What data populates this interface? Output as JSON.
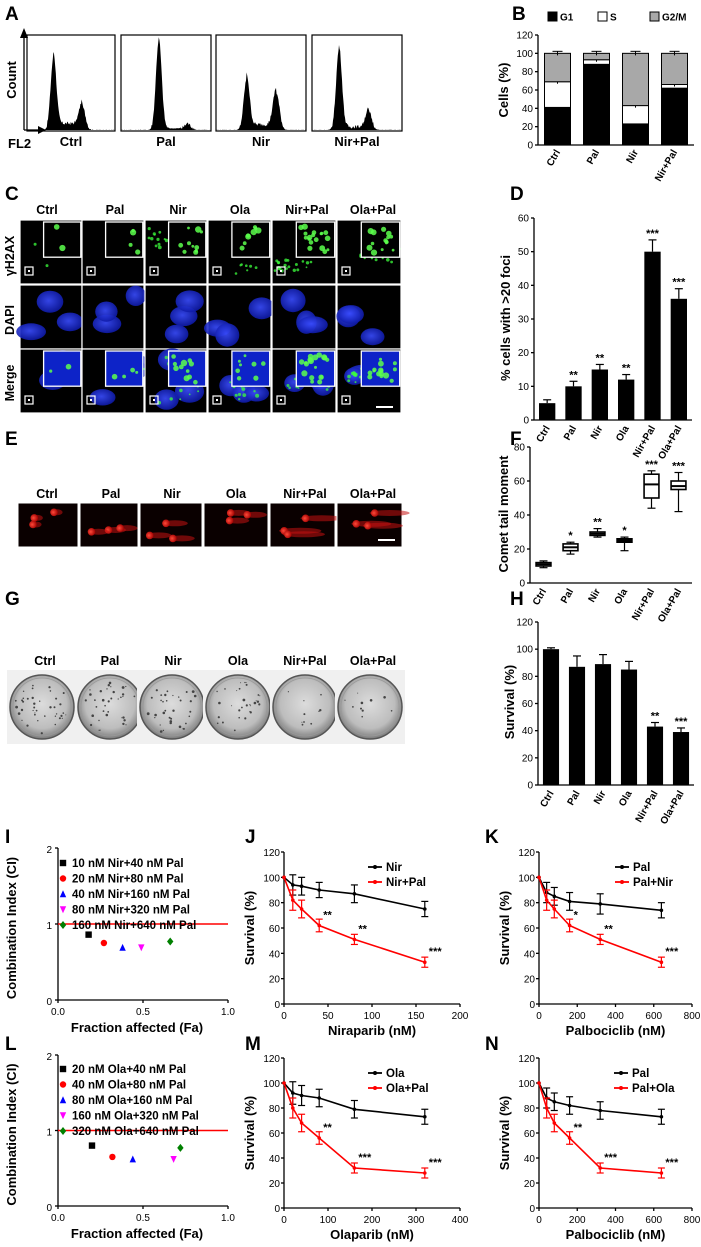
{
  "panel_letters": [
    "A",
    "B",
    "C",
    "D",
    "E",
    "F",
    "G",
    "H",
    "I",
    "J",
    "K",
    "L",
    "M",
    "N"
  ],
  "panel_a": {
    "ylabel": "Count",
    "xlabel": "FL2",
    "labels": [
      "Ctrl",
      "Pal",
      "Nir",
      "Nir+Pal"
    ]
  },
  "panel_c": {
    "col_labels": [
      "Ctrl",
      "Pal",
      "Nir",
      "Ola",
      "Nir+Pal",
      "Ola+Pal"
    ],
    "row_labels": [
      "γH2AX",
      "DAPI",
      "Merge"
    ]
  },
  "panel_e": {
    "labels": [
      "Ctrl",
      "Pal",
      "Nir",
      "Ola",
      "Nir+Pal",
      "Ola+Pal"
    ]
  },
  "panel_g": {
    "labels": [
      "Ctrl",
      "Pal",
      "Nir",
      "Ola",
      "Nir+Pal",
      "Ola+Pal"
    ]
  },
  "chart_data": [
    {
      "panel": "B",
      "type": "bar",
      "categories": [
        "Ctrl",
        "Pal",
        "Nir",
        "Nir+Pal"
      ],
      "series": [
        {
          "name": "G1",
          "values": [
            41,
            88,
            23,
            62
          ],
          "color": "#000000"
        },
        {
          "name": "S",
          "values": [
            28,
            5,
            20,
            4
          ],
          "color": "#ffffff"
        },
        {
          "name": "G2/M",
          "values": [
            31,
            7,
            57,
            34
          ],
          "color": "#a8a8a8"
        }
      ],
      "ylabel": "Cells (%)",
      "ylim": [
        0,
        120
      ],
      "yticks": [
        0,
        20,
        40,
        60,
        80,
        100,
        120
      ],
      "legend": "top"
    },
    {
      "panel": "D",
      "type": "bar",
      "categories": [
        "Ctrl",
        "Pal",
        "Nir",
        "Ola",
        "Nir+Pal",
        "Ola+Pal"
      ],
      "values": [
        5,
        10,
        15,
        12,
        50,
        36
      ],
      "errors": [
        1,
        1.5,
        1.5,
        1.5,
        3.5,
        3
      ],
      "stars": [
        "",
        "**",
        "**",
        "**",
        "***",
        "***"
      ],
      "ylabel": "% cells with >20 foci",
      "ylim": [
        0,
        60
      ],
      "yticks": [
        0,
        10,
        20,
        30,
        40,
        50,
        60
      ]
    },
    {
      "panel": "F",
      "type": "bar",
      "categories": [
        "Ctrl",
        "Pal",
        "Nir",
        "Ola",
        "Nir+Pal",
        "Ola+Pal"
      ],
      "box": [
        {
          "min": 9,
          "q1": 10,
          "median": 11,
          "q3": 12,
          "max": 13
        },
        {
          "min": 17,
          "q1": 19,
          "median": 21,
          "q3": 23,
          "max": 24
        },
        {
          "min": 27,
          "q1": 28,
          "median": 29,
          "q3": 30,
          "max": 32
        },
        {
          "min": 19,
          "q1": 24,
          "median": 25,
          "q3": 26,
          "max": 27
        },
        {
          "min": 44,
          "q1": 50,
          "median": 58,
          "q3": 64,
          "max": 66
        },
        {
          "min": 42,
          "q1": 55,
          "median": 57,
          "q3": 60,
          "max": 65
        }
      ],
      "stars": [
        "",
        "*",
        "**",
        "*",
        "***",
        "***"
      ],
      "ylabel": "Comet tail moment",
      "ylim": [
        0,
        80
      ],
      "yticks": [
        0,
        20,
        40,
        60,
        80
      ]
    },
    {
      "panel": "H",
      "type": "bar",
      "categories": [
        "Ctrl",
        "Pal",
        "Nir",
        "Ola",
        "Nir+Pal",
        "Ola+Pal"
      ],
      "values": [
        100,
        87,
        89,
        85,
        43,
        39
      ],
      "errors": [
        1,
        8,
        7,
        6,
        3,
        3
      ],
      "stars": [
        "",
        "",
        "",
        "",
        "**",
        "***"
      ],
      "ylabel": "Surviva​l (%)",
      "ylim": [
        0,
        120
      ],
      "yticks": [
        0,
        20,
        40,
        60,
        80,
        100,
        120
      ]
    },
    {
      "panel": "I",
      "type": "scatter",
      "series": [
        {
          "name": "10 nM Nir+40 nM Pal",
          "x": [
            0.18
          ],
          "y": [
            0.86
          ],
          "color": "#000000",
          "marker": "square"
        },
        {
          "name": "20 nM Nir+80 nM Pal",
          "x": [
            0.27
          ],
          "y": [
            0.75
          ],
          "color": "#ff0000",
          "marker": "circle"
        },
        {
          "name": "40 nM Nir+160 nM Pal",
          "x": [
            0.38
          ],
          "y": [
            0.69
          ],
          "color": "#0000ff",
          "marker": "triangle-up"
        },
        {
          "name": "80 nM Nir+320 nM Pal",
          "x": [
            0.49
          ],
          "y": [
            0.69
          ],
          "color": "#ff00ff",
          "marker": "triangle-down"
        },
        {
          "name": "160 nM Nir+640 nM Pal",
          "x": [
            0.66
          ],
          "y": [
            0.77
          ],
          "color": "#008000",
          "marker": "diamond"
        }
      ],
      "reference_line": 1,
      "xlabel": "Fraction affected (Fa)",
      "ylabel": "Combination Index (CI)",
      "xlim": [
        0,
        1
      ],
      "ylim": [
        0,
        2
      ],
      "xticks": [
        0.0,
        0.5,
        1.0
      ],
      "yticks": [
        0,
        1,
        2
      ]
    },
    {
      "panel": "J",
      "type": "line",
      "series": [
        {
          "name": "Nir",
          "x": [
            0,
            10,
            20,
            40,
            80,
            160
          ],
          "y": [
            100,
            94,
            93,
            90,
            87,
            75
          ],
          "err": [
            0,
            8,
            7,
            6,
            7,
            6
          ],
          "color": "#000000"
        },
        {
          "name": "Nir+Pal",
          "x": [
            0,
            10,
            20,
            40,
            80,
            160
          ],
          "y": [
            100,
            82,
            75,
            62,
            51,
            33
          ],
          "err": [
            0,
            8,
            7,
            5,
            4,
            4
          ],
          "color": "#ff0000"
        }
      ],
      "stars": [
        {
          "x": 40,
          "y": 62,
          "text": "**"
        },
        {
          "x": 80,
          "y": 51,
          "text": "**"
        },
        {
          "x": 160,
          "y": 33,
          "text": "***"
        }
      ],
      "xlabel": "Niraparib (nM)",
      "ylabel": "Survival (%)",
      "xlim": [
        0,
        200
      ],
      "ylim": [
        0,
        120
      ],
      "xticks": [
        0,
        50,
        100,
        150,
        200
      ],
      "yticks": [
        0,
        20,
        40,
        60,
        80,
        100,
        120
      ]
    },
    {
      "panel": "K",
      "type": "line",
      "series": [
        {
          "name": "Pal",
          "x": [
            0,
            40,
            80,
            160,
            320,
            640
          ],
          "y": [
            100,
            88,
            85,
            81,
            79,
            74
          ],
          "err": [
            0,
            8,
            7,
            7,
            8,
            6
          ],
          "color": "#000000"
        },
        {
          "name": "Pal+Nir",
          "x": [
            0,
            40,
            80,
            160,
            320,
            640
          ],
          "y": [
            100,
            82,
            75,
            62,
            51,
            33
          ],
          "err": [
            0,
            8,
            7,
            5,
            4,
            4
          ],
          "color": "#ff0000"
        }
      ],
      "stars": [
        {
          "x": 160,
          "y": 62,
          "text": "*"
        },
        {
          "x": 320,
          "y": 51,
          "text": "**"
        },
        {
          "x": 640,
          "y": 33,
          "text": "***"
        }
      ],
      "xlabel": "Palbociclib (nM)",
      "ylabel": "Survival (%)",
      "xlim": [
        0,
        800
      ],
      "ylim": [
        0,
        120
      ],
      "xticks": [
        0,
        200,
        400,
        600,
        800
      ],
      "yticks": [
        0,
        20,
        40,
        60,
        80,
        100,
        120
      ]
    },
    {
      "panel": "L",
      "type": "scatter",
      "series": [
        {
          "name": "20 nM Ola+40 nM Pal",
          "x": [
            0.2
          ],
          "y": [
            0.8
          ],
          "color": "#000000",
          "marker": "square"
        },
        {
          "name": "40 nM Ola+80 nM Pal",
          "x": [
            0.32
          ],
          "y": [
            0.65
          ],
          "color": "#ff0000",
          "marker": "circle"
        },
        {
          "name": "80 nM Ola+160 nM Pal",
          "x": [
            0.44
          ],
          "y": [
            0.62
          ],
          "color": "#0000ff",
          "marker": "triangle-up"
        },
        {
          "name": "160 nM Ola+320 nM Pal",
          "x": [
            0.68
          ],
          "y": [
            0.62
          ],
          "color": "#ff00ff",
          "marker": "triangle-down"
        },
        {
          "name": "320 nM Ola+640 nM Pal",
          "x": [
            0.72
          ],
          "y": [
            0.77
          ],
          "color": "#008000",
          "marker": "diamond"
        }
      ],
      "reference_line": 1,
      "xlabel": "Fraction affected (Fa)",
      "ylabel": "Combination Index (CI)",
      "xlim": [
        0,
        1
      ],
      "ylim": [
        0,
        2
      ],
      "xticks": [
        0.0,
        0.5,
        1.0
      ],
      "yticks": [
        0,
        1,
        2
      ]
    },
    {
      "panel": "M",
      "type": "line",
      "series": [
        {
          "name": "Ola",
          "x": [
            0,
            20,
            40,
            80,
            160,
            320
          ],
          "y": [
            100,
            92,
            90,
            88,
            79,
            73
          ],
          "err": [
            0,
            9,
            8,
            7,
            7,
            6
          ],
          "color": "#000000"
        },
        {
          "name": "Ola+Pal",
          "x": [
            0,
            20,
            40,
            80,
            160,
            320
          ],
          "y": [
            100,
            80,
            68,
            56,
            32,
            28
          ],
          "err": [
            0,
            8,
            7,
            5,
            4,
            4
          ],
          "color": "#ff0000"
        }
      ],
      "stars": [
        {
          "x": 80,
          "y": 56,
          "text": "**"
        },
        {
          "x": 160,
          "y": 32,
          "text": "***"
        },
        {
          "x": 320,
          "y": 28,
          "text": "***"
        }
      ],
      "xlabel": "Olaparib (nM)",
      "ylabel": "Survival (%)",
      "xlim": [
        0,
        400
      ],
      "ylim": [
        0,
        120
      ],
      "xticks": [
        0,
        100,
        200,
        300,
        400
      ],
      "yticks": [
        0,
        20,
        40,
        60,
        80,
        100,
        120
      ]
    },
    {
      "panel": "N",
      "type": "line",
      "series": [
        {
          "name": "Pal",
          "x": [
            0,
            40,
            80,
            160,
            320,
            640
          ],
          "y": [
            100,
            88,
            85,
            82,
            78,
            73
          ],
          "err": [
            0,
            8,
            7,
            7,
            7,
            6
          ],
          "color": "#000000"
        },
        {
          "name": "Pal+Ola",
          "x": [
            0,
            40,
            80,
            160,
            320,
            640
          ],
          "y": [
            100,
            80,
            68,
            56,
            32,
            28
          ],
          "err": [
            0,
            8,
            7,
            5,
            4,
            4
          ],
          "color": "#ff0000"
        }
      ],
      "stars": [
        {
          "x": 160,
          "y": 56,
          "text": "**"
        },
        {
          "x": 320,
          "y": 32,
          "text": "***"
        },
        {
          "x": 640,
          "y": 28,
          "text": "***"
        }
      ],
      "xlabel": "Palbociclib (nM)",
      "ylabel": "Survival (%)",
      "xlim": [
        0,
        800
      ],
      "ylim": [
        0,
        120
      ],
      "xticks": [
        0,
        200,
        400,
        600,
        800
      ],
      "yticks": [
        0,
        20,
        40,
        60,
        80,
        100,
        120
      ]
    }
  ]
}
